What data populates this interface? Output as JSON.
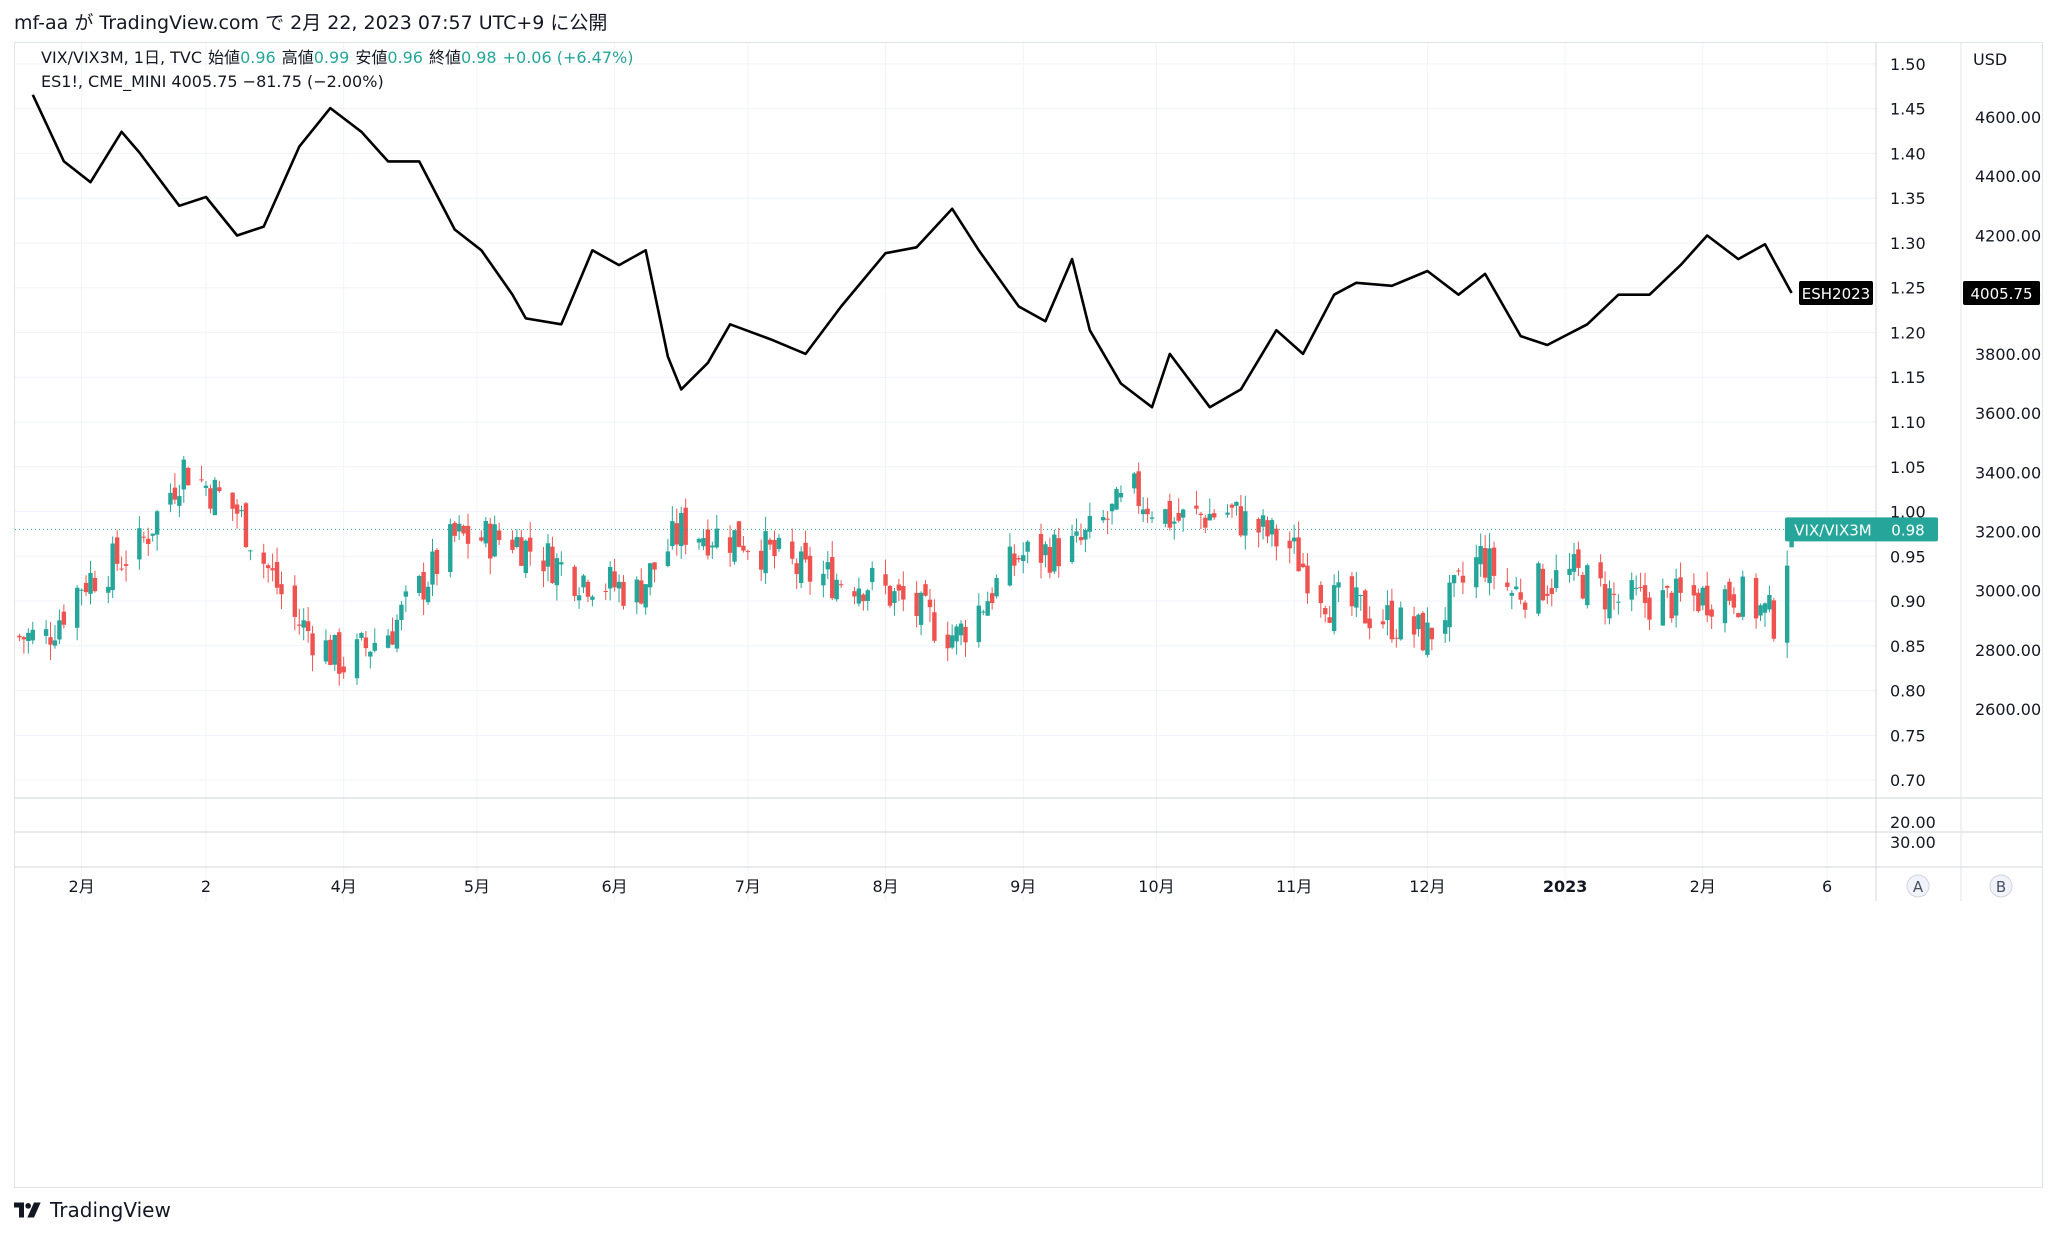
{
  "header": {
    "text": "mf-aa が TradingView.com で 2月 22, 2023 07:57 UTC+9 に公開"
  },
  "legend": {
    "line1": {
      "symbol": "VIX/VIX3M, 1日, TVC",
      "open_label": "始値",
      "open_value": "0.96",
      "high_label": "高値",
      "high_value": "0.99",
      "low_label": "安値",
      "low_value": "0.96",
      "close_label": "終値",
      "close_value": "0.98",
      "change": "+0.06 (+6.47%)"
    },
    "line2": {
      "text": "ES1!, CME_MINI  4005.75  −81.75 (−2.00%)"
    }
  },
  "right_axis_currency": "USD",
  "footer": {
    "brand": "TradingView"
  },
  "colors": {
    "up": "#26a69a",
    "down": "#ef5350",
    "line": "#000000",
    "grid": "#f0f3fa"
  },
  "chart_data": [
    {
      "type": "candlestick",
      "name": "VIX/VIX3M",
      "axis": "left",
      "ylim": [
        0.68,
        1.52
      ],
      "yticks": [
        "1.50",
        "1.45",
        "1.40",
        "1.35",
        "1.30",
        "1.25",
        "1.20",
        "1.15",
        "1.10",
        "1.05",
        "1.00",
        "0.95",
        "0.90",
        "0.85",
        "0.80",
        "0.75",
        "0.70"
      ],
      "last_label": "VIX/VIX3M",
      "last_value": "0.98",
      "last_ohlc": {
        "open": 0.96,
        "high": 0.99,
        "low": 0.96,
        "close": 0.98
      },
      "approx_close_path": [
        {
          "x": "2022-01-24",
          "y": 0.86
        },
        {
          "x": "2022-02-01",
          "y": 0.92
        },
        {
          "x": "2022-02-14",
          "y": 0.96
        },
        {
          "x": "2022-02-24",
          "y": 1.05
        },
        {
          "x": "2022-03-08",
          "y": 1.0
        },
        {
          "x": "2022-03-21",
          "y": 0.88
        },
        {
          "x": "2022-04-01",
          "y": 0.83
        },
        {
          "x": "2022-04-12",
          "y": 0.87
        },
        {
          "x": "2022-04-26",
          "y": 0.97
        },
        {
          "x": "2022-05-09",
          "y": 0.97
        },
        {
          "x": "2022-05-23",
          "y": 0.93
        },
        {
          "x": "2022-06-06",
          "y": 0.91
        },
        {
          "x": "2022-06-16",
          "y": 0.98
        },
        {
          "x": "2022-06-30",
          "y": 0.97
        },
        {
          "x": "2022-07-14",
          "y": 0.93
        },
        {
          "x": "2022-07-29",
          "y": 0.92
        },
        {
          "x": "2022-08-17",
          "y": 0.86
        },
        {
          "x": "2022-08-31",
          "y": 0.95
        },
        {
          "x": "2022-09-13",
          "y": 0.96
        },
        {
          "x": "2022-09-26",
          "y": 1.02
        },
        {
          "x": "2022-10-05",
          "y": 0.99
        },
        {
          "x": "2022-10-17",
          "y": 1.0
        },
        {
          "x": "2022-10-31",
          "y": 0.96
        },
        {
          "x": "2022-11-09",
          "y": 0.9
        },
        {
          "x": "2022-11-22",
          "y": 0.88
        },
        {
          "x": "2022-12-01",
          "y": 0.86
        },
        {
          "x": "2022-12-13",
          "y": 0.95
        },
        {
          "x": "2022-12-20",
          "y": 0.91
        },
        {
          "x": "2023-01-03",
          "y": 0.93
        },
        {
          "x": "2023-01-13",
          "y": 0.9
        },
        {
          "x": "2023-01-25",
          "y": 0.9
        },
        {
          "x": "2023-02-08",
          "y": 0.91
        },
        {
          "x": "2023-02-17",
          "y": 0.88
        },
        {
          "x": "2023-02-21",
          "y": 0.98
        }
      ]
    },
    {
      "type": "line",
      "name": "ES1!",
      "axis": "right",
      "ylim": [
        2300,
        4850
      ],
      "yticks": [
        "4600.00",
        "4400.00",
        "4200.00",
        "4000.00",
        "3800.00",
        "3600.00",
        "3400.00",
        "3200.00",
        "3000.00",
        "2800.00",
        "2600.00"
      ],
      "last_label": "ESH2023",
      "last_value": "4005.75",
      "points": [
        {
          "x": "2022-01-21",
          "y": 4675
        },
        {
          "x": "2022-01-28",
          "y": 4450
        },
        {
          "x": "2022-02-03",
          "y": 4380
        },
        {
          "x": "2022-02-10",
          "y": 4550
        },
        {
          "x": "2022-02-14",
          "y": 4480
        },
        {
          "x": "2022-02-23",
          "y": 4300
        },
        {
          "x": "2022-03-01",
          "y": 4330
        },
        {
          "x": "2022-03-08",
          "y": 4200
        },
        {
          "x": "2022-03-14",
          "y": 4230
        },
        {
          "x": "2022-03-22",
          "y": 4500
        },
        {
          "x": "2022-03-29",
          "y": 4630
        },
        {
          "x": "2022-04-05",
          "y": 4550
        },
        {
          "x": "2022-04-11",
          "y": 4450
        },
        {
          "x": "2022-04-18",
          "y": 4450
        },
        {
          "x": "2022-04-26",
          "y": 4220
        },
        {
          "x": "2022-05-02",
          "y": 4150
        },
        {
          "x": "2022-05-09",
          "y": 4000
        },
        {
          "x": "2022-05-12",
          "y": 3920
        },
        {
          "x": "2022-05-20",
          "y": 3900
        },
        {
          "x": "2022-05-27",
          "y": 4150
        },
        {
          "x": "2022-06-02",
          "y": 4100
        },
        {
          "x": "2022-06-08",
          "y": 4150
        },
        {
          "x": "2022-06-13",
          "y": 3790
        },
        {
          "x": "2022-06-16",
          "y": 3680
        },
        {
          "x": "2022-06-22",
          "y": 3770
        },
        {
          "x": "2022-06-27",
          "y": 3900
        },
        {
          "x": "2022-07-06",
          "y": 3850
        },
        {
          "x": "2022-07-14",
          "y": 3800
        },
        {
          "x": "2022-07-22",
          "y": 3960
        },
        {
          "x": "2022-08-01",
          "y": 4140
        },
        {
          "x": "2022-08-08",
          "y": 4160
        },
        {
          "x": "2022-08-16",
          "y": 4290
        },
        {
          "x": "2022-08-22",
          "y": 4150
        },
        {
          "x": "2022-08-31",
          "y": 3960
        },
        {
          "x": "2022-09-06",
          "y": 3910
        },
        {
          "x": "2022-09-12",
          "y": 4120
        },
        {
          "x": "2022-09-16",
          "y": 3880
        },
        {
          "x": "2022-09-23",
          "y": 3700
        },
        {
          "x": "2022-09-30",
          "y": 3620
        },
        {
          "x": "2022-10-04",
          "y": 3800
        },
        {
          "x": "2022-10-13",
          "y": 3620
        },
        {
          "x": "2022-10-20",
          "y": 3680
        },
        {
          "x": "2022-10-28",
          "y": 3880
        },
        {
          "x": "2022-11-03",
          "y": 3800
        },
        {
          "x": "2022-11-10",
          "y": 4000
        },
        {
          "x": "2022-11-15",
          "y": 4040
        },
        {
          "x": "2022-11-23",
          "y": 4030
        },
        {
          "x": "2022-12-01",
          "y": 4080
        },
        {
          "x": "2022-12-08",
          "y": 4000
        },
        {
          "x": "2022-12-14",
          "y": 4070
        },
        {
          "x": "2022-12-22",
          "y": 3860
        },
        {
          "x": "2022-12-28",
          "y": 3830
        },
        {
          "x": "2023-01-06",
          "y": 3900
        },
        {
          "x": "2023-01-13",
          "y": 4000
        },
        {
          "x": "2023-01-20",
          "y": 4000
        },
        {
          "x": "2023-01-27",
          "y": 4100
        },
        {
          "x": "2023-02-02",
          "y": 4200
        },
        {
          "x": "2023-02-09",
          "y": 4120
        },
        {
          "x": "2023-02-15",
          "y": 4170
        },
        {
          "x": "2023-02-21",
          "y": 4005.75
        }
      ]
    },
    {
      "type": "axis-pane",
      "name": "lower-pane",
      "yticks": [
        "20.00",
        "30.00"
      ]
    }
  ],
  "x_axis": {
    "start": "2022-01-17",
    "end": "2023-03-12",
    "ticks": [
      {
        "date": "2022-02-01",
        "label": "2月"
      },
      {
        "date": "2022-03-01",
        "label": "2"
      },
      {
        "date": "2022-04-01",
        "label": "4月"
      },
      {
        "date": "2022-05-01",
        "label": "5月"
      },
      {
        "date": "2022-06-01",
        "label": "6月"
      },
      {
        "date": "2022-07-01",
        "label": "7月"
      },
      {
        "date": "2022-08-01",
        "label": "8月"
      },
      {
        "date": "2022-09-01",
        "label": "9月"
      },
      {
        "date": "2022-10-01",
        "label": "10月"
      },
      {
        "date": "2022-11-01",
        "label": "11月"
      },
      {
        "date": "2022-12-01",
        "label": "12月"
      },
      {
        "date": "2023-01-01",
        "label": "2023",
        "bold": true
      },
      {
        "date": "2023-02-01",
        "label": "2月"
      },
      {
        "date": "2023-03-01",
        "label": "6"
      }
    ]
  },
  "scale_buttons": [
    "A",
    "B"
  ]
}
